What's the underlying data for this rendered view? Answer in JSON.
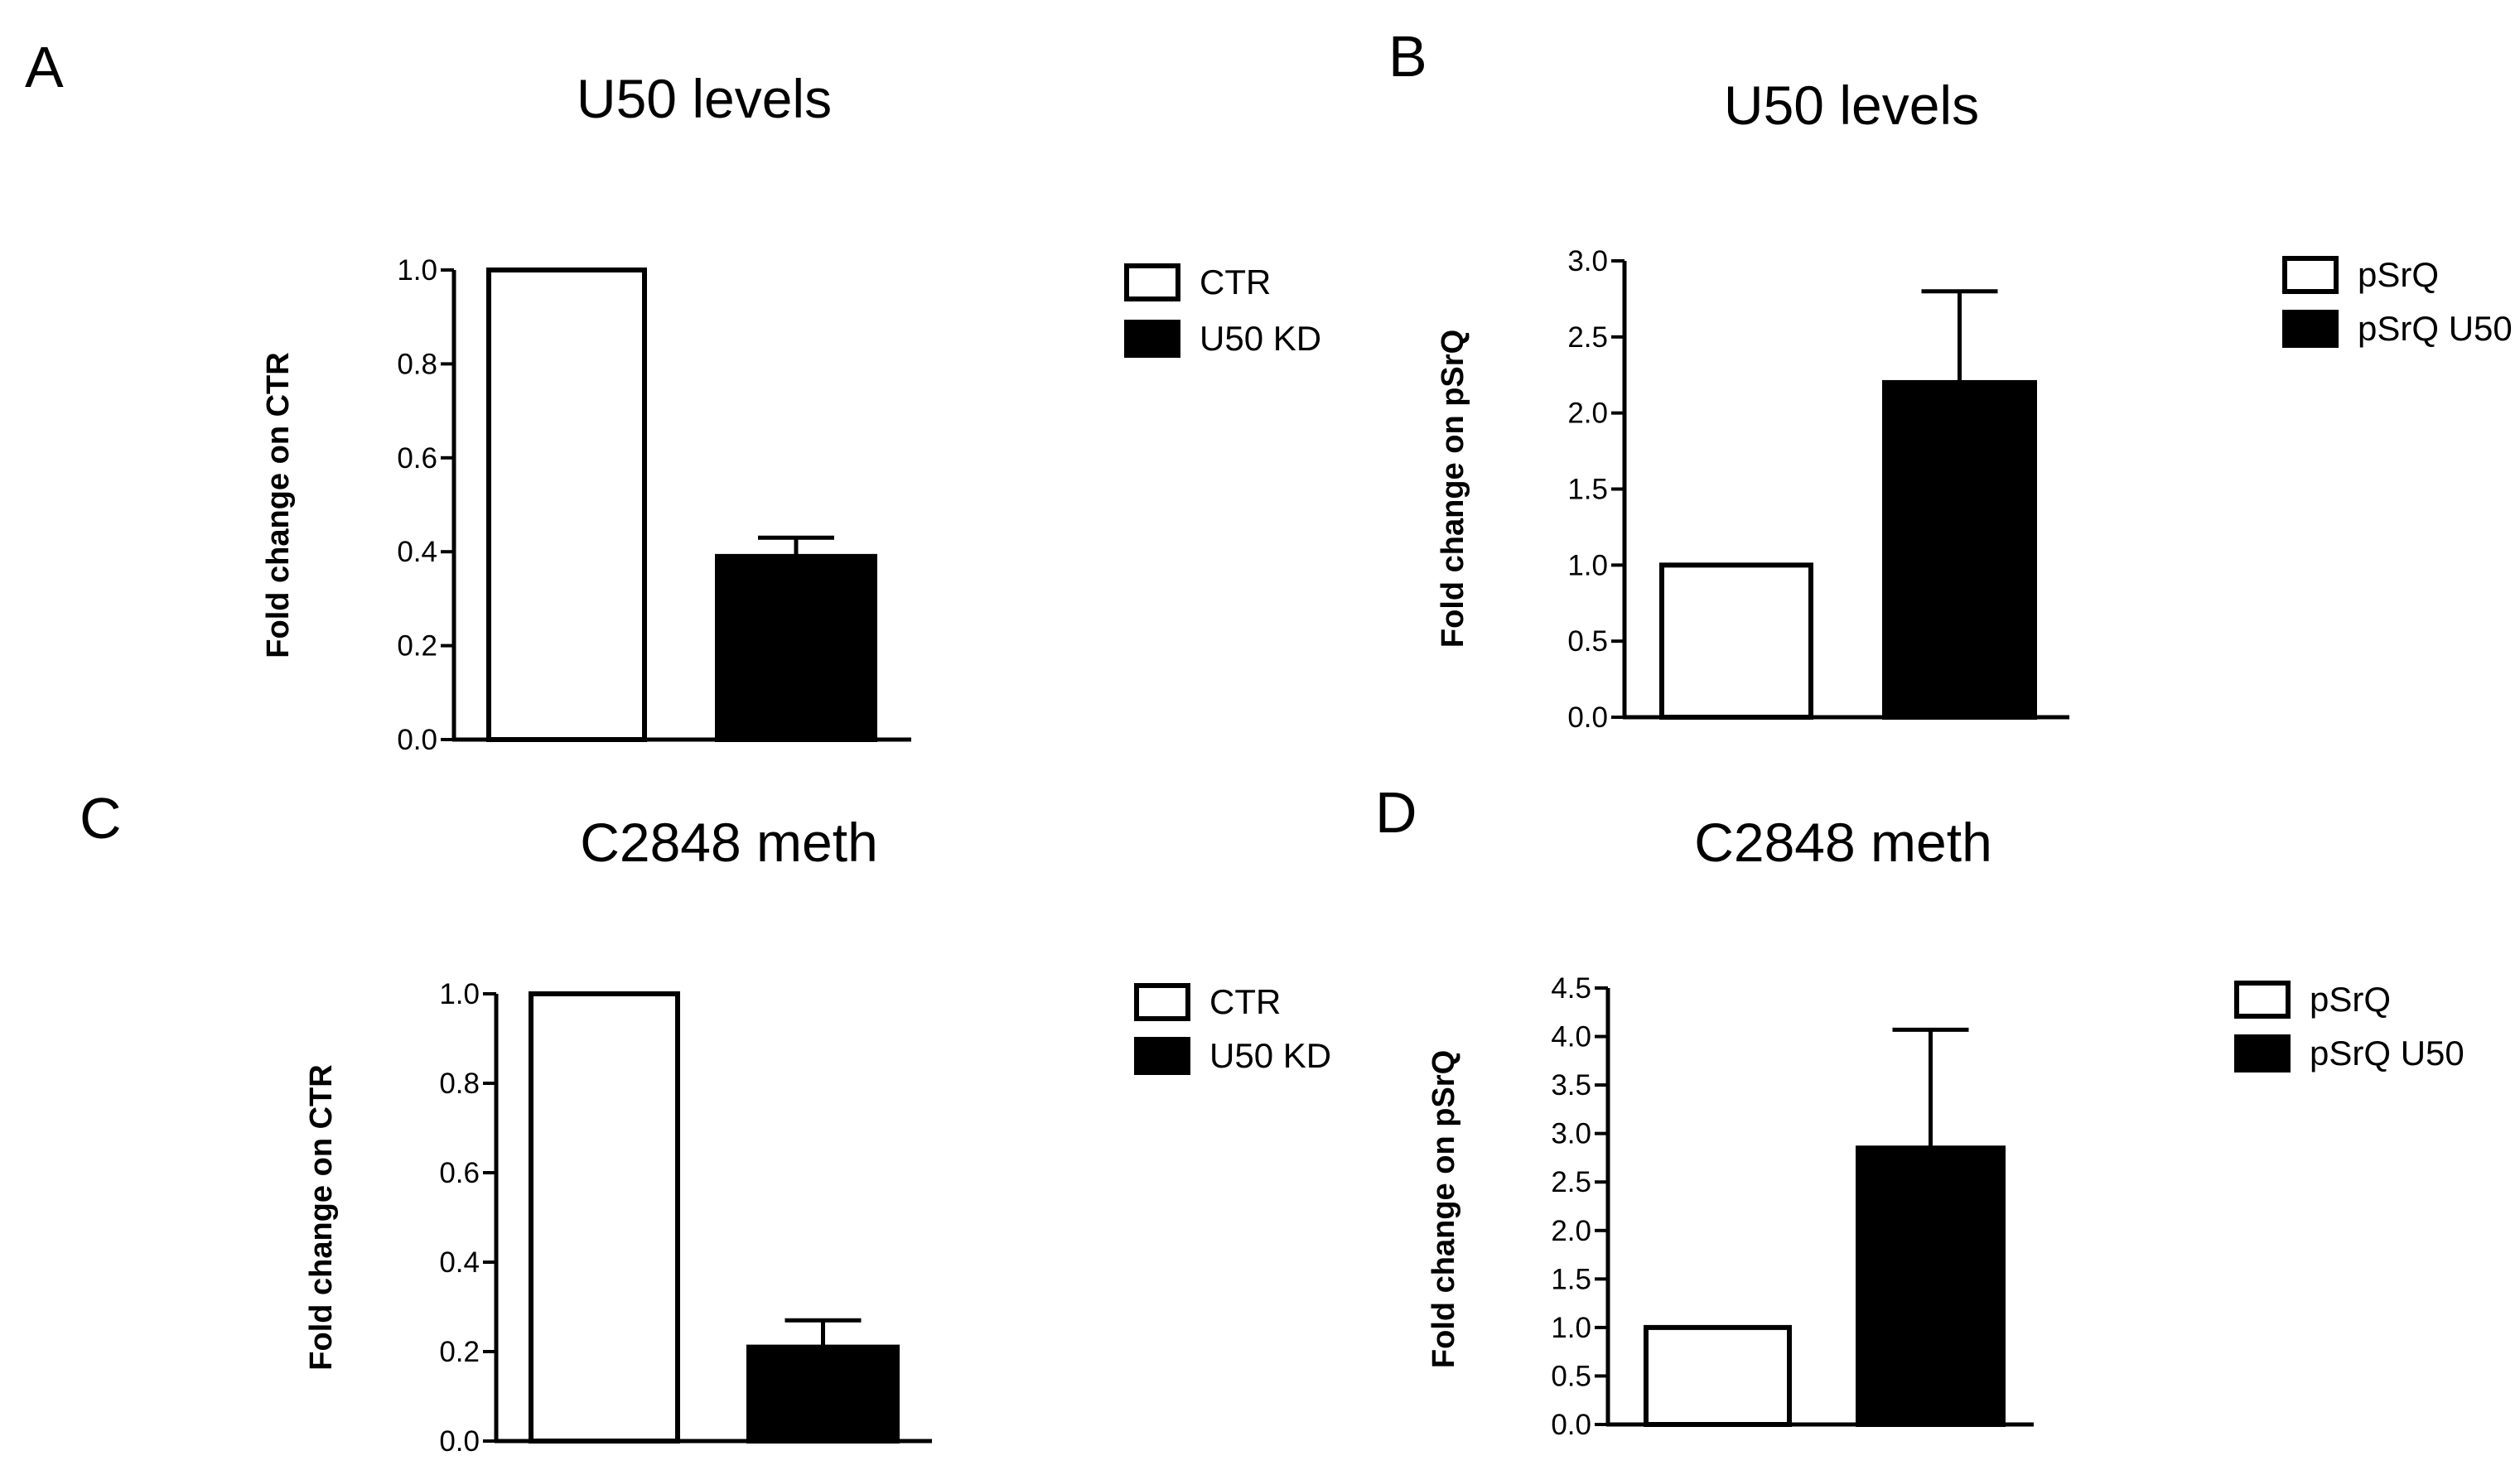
{
  "chart_data": [
    {
      "panel": "A",
      "type": "bar",
      "title": "U50 levels",
      "xlabel": "",
      "ylabel": "Fold change on CTR",
      "ylim": [
        0,
        1.0
      ],
      "yticks": [
        "0.0",
        "0.2",
        "0.4",
        "0.6",
        "0.8",
        "1.0"
      ],
      "categories": [
        "CTR",
        "U50 KD"
      ],
      "values": [
        1.0,
        0.39
      ],
      "errors": [
        0.0,
        0.04
      ],
      "fills": [
        "#ffffff",
        "#000000"
      ],
      "legend": [
        "CTR",
        "U50 KD"
      ]
    },
    {
      "panel": "B",
      "type": "bar",
      "title": "U50 levels",
      "xlabel": "",
      "ylabel": "Fold change on pSrQ",
      "ylim": [
        0,
        3.0
      ],
      "yticks": [
        "0.0",
        "0.5",
        "1.0",
        "1.5",
        "2.0",
        "2.5",
        "3.0"
      ],
      "categories": [
        "pSrQ",
        "pSrQ U50"
      ],
      "values": [
        1.0,
        2.2
      ],
      "errors": [
        0.0,
        0.6
      ],
      "fills": [
        "#ffffff",
        "#000000"
      ],
      "legend": [
        "pSrQ",
        "pSrQ U50"
      ]
    },
    {
      "panel": "C",
      "type": "bar",
      "title": "C2848 meth",
      "xlabel": "",
      "ylabel": "Fold change on CTR",
      "ylim": [
        0,
        1.0
      ],
      "yticks": [
        "0.0",
        "0.2",
        "0.4",
        "0.6",
        "0.8",
        "1.0"
      ],
      "categories": [
        "CTR",
        "U50 KD"
      ],
      "values": [
        1.0,
        0.21
      ],
      "errors": [
        0.0,
        0.06
      ],
      "fills": [
        "#ffffff",
        "#000000"
      ],
      "legend": [
        "CTR",
        "U50 KD"
      ]
    },
    {
      "panel": "D",
      "type": "bar",
      "title": "C2848 meth",
      "xlabel": "",
      "ylabel": "Fold change on pSrQ",
      "ylim": [
        0,
        4.5
      ],
      "yticks": [
        "0.0",
        "0.5",
        "1.0",
        "1.5",
        "2.0",
        "2.5",
        "3.0",
        "3.5",
        "4.0",
        "4.5"
      ],
      "categories": [
        "pSrQ",
        "pSrQ U50"
      ],
      "values": [
        1.0,
        2.85
      ],
      "errors": [
        0.0,
        1.22
      ],
      "fills": [
        "#ffffff",
        "#000000"
      ],
      "legend": [
        "pSrQ",
        "pSrQ U50"
      ]
    }
  ]
}
